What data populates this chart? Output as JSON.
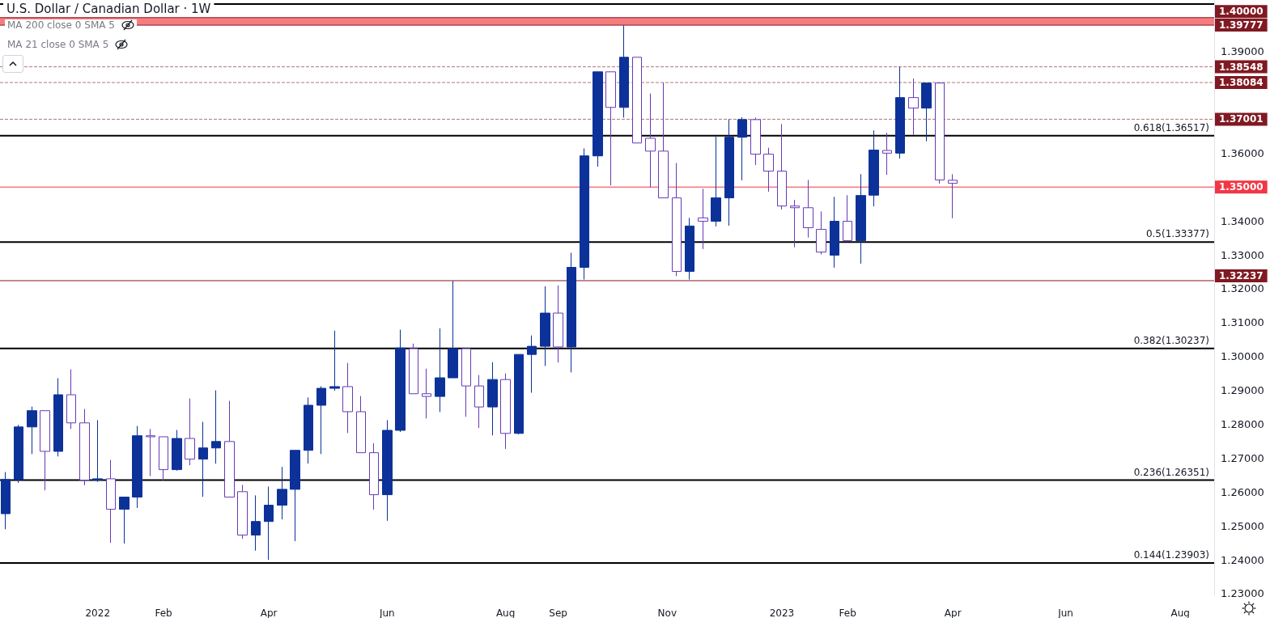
{
  "chart_data": {
    "type": "candlestick",
    "title": "U.S. Dollar / Canadian Dollar · 1W",
    "annotations": [
      "MA 200 close 0 SMA 5",
      "MA 21 close 0 SMA 5"
    ],
    "x": [
      "2021-11-14",
      "2021-11-21",
      "2021-11-28",
      "2021-12-05",
      "2021-12-12",
      "2021-12-19",
      "2021-12-26",
      "2022-01-02",
      "2022-01-09",
      "2022-01-16",
      "2022-01-23",
      "2022-01-30",
      "2022-02-06",
      "2022-02-13",
      "2022-02-20",
      "2022-02-27",
      "2022-03-06",
      "2022-03-13",
      "2022-03-20",
      "2022-03-27",
      "2022-04-03",
      "2022-04-10",
      "2022-04-17",
      "2022-04-24",
      "2022-05-01",
      "2022-05-08",
      "2022-05-15",
      "2022-05-22",
      "2022-05-29",
      "2022-06-05",
      "2022-06-12",
      "2022-06-19",
      "2022-06-26",
      "2022-07-03",
      "2022-07-10",
      "2022-07-17",
      "2022-07-24",
      "2022-07-31",
      "2022-08-07",
      "2022-08-14",
      "2022-08-21",
      "2022-08-28",
      "2022-09-04",
      "2022-09-11",
      "2022-09-18",
      "2022-09-25",
      "2022-10-02",
      "2022-10-09",
      "2022-10-16",
      "2022-10-23",
      "2022-10-30",
      "2022-11-06",
      "2022-11-13",
      "2022-11-20",
      "2022-11-27",
      "2022-12-04",
      "2022-12-11",
      "2022-12-18",
      "2022-12-25",
      "2023-01-01",
      "2023-01-08",
      "2023-01-15",
      "2023-01-22",
      "2023-01-29",
      "2023-02-05",
      "2023-02-12",
      "2023-02-19",
      "2023-02-26",
      "2023-03-05",
      "2023-03-12",
      "2023-03-19",
      "2023-03-26",
      "2023-04-02"
    ],
    "ohlc": [
      [
        1.2536,
        1.2659,
        1.249,
        1.2637
      ],
      [
        1.2637,
        1.2798,
        1.2627,
        1.2792
      ],
      [
        1.2792,
        1.2852,
        1.2712,
        1.284
      ],
      [
        1.284,
        1.284,
        1.2605,
        1.272
      ],
      [
        1.272,
        1.2936,
        1.2705,
        1.2887
      ],
      [
        1.2887,
        1.2962,
        1.2786,
        1.2804
      ],
      [
        1.2804,
        1.2845,
        1.262,
        1.2635
      ],
      [
        1.2635,
        1.2812,
        1.263,
        1.2639
      ],
      [
        1.2639,
        1.2695,
        1.245,
        1.2549
      ],
      [
        1.2549,
        1.2585,
        1.2448,
        1.2585
      ],
      [
        1.2585,
        1.2795,
        1.2553,
        1.2766
      ],
      [
        1.2766,
        1.2786,
        1.2647,
        1.2763
      ],
      [
        1.2763,
        1.2763,
        1.2634,
        1.2666
      ],
      [
        1.2666,
        1.2783,
        1.2663,
        1.2758
      ],
      [
        1.2758,
        1.2876,
        1.2679,
        1.2697
      ],
      [
        1.2697,
        1.2807,
        1.2586,
        1.273
      ],
      [
        1.273,
        1.29,
        1.2684,
        1.2749
      ],
      [
        1.2749,
        1.2869,
        1.2585,
        1.2585
      ],
      [
        1.2601,
        1.2621,
        1.2462,
        1.2473
      ],
      [
        1.2473,
        1.259,
        1.2427,
        1.2513
      ],
      [
        1.2513,
        1.2616,
        1.24,
        1.2561
      ],
      [
        1.2561,
        1.2674,
        1.2519,
        1.2608
      ],
      [
        1.2608,
        1.2723,
        1.2455,
        1.2723
      ],
      [
        1.2723,
        1.2879,
        1.2684,
        1.2856
      ],
      [
        1.2856,
        1.2912,
        1.2712,
        1.2906
      ],
      [
        1.2906,
        1.3076,
        1.2899,
        1.2911
      ],
      [
        1.2911,
        1.2981,
        1.2774,
        1.2837
      ],
      [
        1.2837,
        1.2883,
        1.2716,
        1.2716
      ],
      [
        1.2716,
        1.2744,
        1.2548,
        1.2592
      ],
      [
        1.2592,
        1.2812,
        1.2515,
        1.2782
      ],
      [
        1.2782,
        1.3079,
        1.2777,
        1.3025
      ],
      [
        1.3023,
        1.3038,
        1.289,
        1.289
      ],
      [
        1.289,
        1.2964,
        1.2817,
        1.2882
      ],
      [
        1.2882,
        1.3083,
        1.2836,
        1.2937
      ],
      [
        1.2937,
        1.3223,
        1.2937,
        1.3023
      ],
      [
        1.3023,
        1.3023,
        1.2822,
        1.2913
      ],
      [
        1.2913,
        1.2945,
        1.2789,
        1.2851
      ],
      [
        1.2851,
        1.2983,
        1.2767,
        1.2932
      ],
      [
        1.2932,
        1.295,
        1.2727,
        1.2773
      ],
      [
        1.2773,
        1.3006,
        1.277,
        1.3006
      ],
      [
        1.3006,
        1.3062,
        1.2893,
        1.303
      ],
      [
        1.303,
        1.3207,
        1.2972,
        1.3128
      ],
      [
        1.3128,
        1.321,
        1.2982,
        1.3028
      ],
      [
        1.3028,
        1.3306,
        1.2953,
        1.3263
      ],
      [
        1.3263,
        1.3614,
        1.3227,
        1.3592
      ],
      [
        1.3592,
        1.384,
        1.356,
        1.384
      ],
      [
        1.384,
        1.384,
        1.3505,
        1.3735
      ],
      [
        1.3735,
        1.3977,
        1.3705,
        1.3883
      ],
      [
        1.3883,
        1.3883,
        1.363,
        1.363
      ],
      [
        1.3644,
        1.3776,
        1.3499,
        1.3606
      ],
      [
        1.3606,
        1.3808,
        1.3468,
        1.3468
      ],
      [
        1.3468,
        1.3571,
        1.3237,
        1.3251
      ],
      [
        1.3251,
        1.3409,
        1.3227,
        1.3385
      ],
      [
        1.3409,
        1.3495,
        1.3317,
        1.3399
      ],
      [
        1.3399,
        1.3648,
        1.3384,
        1.3468
      ],
      [
        1.3468,
        1.37,
        1.3386,
        1.3647
      ],
      [
        1.3647,
        1.3706,
        1.352,
        1.3699
      ],
      [
        1.3699,
        1.3705,
        1.3565,
        1.3597
      ],
      [
        1.3597,
        1.3616,
        1.3486,
        1.3547
      ],
      [
        1.3547,
        1.3686,
        1.3434,
        1.3444
      ],
      [
        1.3444,
        1.3462,
        1.3322,
        1.3439
      ],
      [
        1.3439,
        1.3521,
        1.3351,
        1.338
      ],
      [
        1.3375,
        1.3428,
        1.3301,
        1.3308
      ],
      [
        1.3299,
        1.3471,
        1.3262,
        1.3399
      ],
      [
        1.3399,
        1.3476,
        1.3339,
        1.3342
      ],
      [
        1.3342,
        1.3538,
        1.3274,
        1.3475
      ],
      [
        1.3476,
        1.3667,
        1.3443,
        1.3609
      ],
      [
        1.3608,
        1.366,
        1.3536,
        1.36
      ],
      [
        1.36,
        1.3855,
        1.3584,
        1.3764
      ],
      [
        1.3764,
        1.382,
        1.3654,
        1.3733
      ],
      [
        1.3733,
        1.3808,
        1.3635,
        1.3807
      ],
      [
        1.3807,
        1.3808,
        1.351,
        1.3521
      ],
      [
        1.352,
        1.3538,
        1.3408,
        1.3511
      ]
    ],
    "colors": [
      "#0c3299",
      "#0c3299",
      "#0c3299",
      "#673ab7",
      "#0c3299",
      "#673ab7",
      "#673ab7",
      "#0c3299",
      "#673ab7",
      "#0c3299",
      "#0c3299",
      "#673ab7",
      "#673ab7",
      "#0c3299",
      "#673ab7",
      "#0c3299",
      "#0c3299",
      "#673ab7",
      "#673ab7",
      "#0c3299",
      "#0c3299",
      "#0c3299",
      "#0c3299",
      "#0c3299",
      "#0c3299",
      "#0c3299",
      "#673ab7",
      "#673ab7",
      "#673ab7",
      "#0c3299",
      "#0c3299",
      "#673ab7",
      "#673ab7",
      "#0c3299",
      "#0c3299",
      "#673ab7",
      "#673ab7",
      "#0c3299",
      "#673ab7",
      "#0c3299",
      "#0c3299",
      "#0c3299",
      "#673ab7",
      "#0c3299",
      "#0c3299",
      "#0c3299",
      "#673ab7",
      "#0c3299",
      "#673ab7",
      "#673ab7",
      "#673ab7",
      "#673ab7",
      "#0c3299",
      "#673ab7",
      "#0c3299",
      "#0c3299",
      "#0c3299",
      "#673ab7",
      "#673ab7",
      "#673ab7",
      "#673ab7",
      "#673ab7",
      "#673ab7",
      "#0c3299",
      "#673ab7",
      "#0c3299",
      "#0c3299",
      "#673ab7",
      "#0c3299",
      "#673ab7",
      "#0c3299",
      "#673ab7",
      "#673ab7"
    ],
    "xlim": [
      "2021-11-11",
      "2023-08-19"
    ],
    "xticks": [
      {
        "value": "2022-01-02",
        "label": "2022"
      },
      {
        "value": "2022-02-06",
        "label": "Feb"
      },
      {
        "value": "2022-04-03",
        "label": "Apr"
      },
      {
        "value": "2022-06-05",
        "label": "Jun"
      },
      {
        "value": "2022-08-07",
        "label": "Aug"
      },
      {
        "value": "2022-09-04",
        "label": "Sep"
      },
      {
        "value": "2022-11-01",
        "label": "Nov"
      },
      {
        "value": "2023-01-01",
        "label": "2023"
      },
      {
        "value": "2023-02-05",
        "label": "Feb"
      },
      {
        "value": "2023-04-02",
        "label": "Apr"
      },
      {
        "value": "2023-06-01",
        "label": "Jun"
      },
      {
        "value": "2023-08-01",
        "label": "Aug"
      }
    ],
    "ylim": [
      1.2295,
      1.4052
    ],
    "yticks": [
      {
        "value": 1.23,
        "label": "1.23000"
      },
      {
        "value": 1.24,
        "label": "1.24000"
      },
      {
        "value": 1.25,
        "label": "1.25000"
      },
      {
        "value": 1.26,
        "label": "1.26000"
      },
      {
        "value": 1.27,
        "label": "1.27000"
      },
      {
        "value": 1.28,
        "label": "1.28000"
      },
      {
        "value": 1.29,
        "label": "1.29000"
      },
      {
        "value": 1.3,
        "label": "1.30000"
      },
      {
        "value": 1.31,
        "label": "1.31000"
      },
      {
        "value": 1.32,
        "label": "1.32000"
      },
      {
        "value": 1.33,
        "label": "1.33000"
      },
      {
        "value": 1.34,
        "label": "1.34000"
      },
      {
        "value": 1.36,
        "label": "1.36000"
      },
      {
        "value": 1.39,
        "label": "1.39000"
      }
    ],
    "ref_lines": [
      {
        "axis": "y",
        "value": 1.404,
        "color": "#000000"
      },
      {
        "axis": "y",
        "value": 1.4,
        "label": "1.40000",
        "color": "#801922"
      },
      {
        "axis": "y",
        "value": 1.39777,
        "label": "1.39777",
        "color": "#801922"
      },
      {
        "axis": "y",
        "value": 1.38548,
        "label": "1.38548",
        "color": "#801922",
        "line_style": "dashed"
      },
      {
        "axis": "y",
        "value": 1.38084,
        "label": "1.38084",
        "color": "#801922",
        "line_style": "dashed"
      },
      {
        "axis": "y",
        "value": 1.37001,
        "label": "1.37001",
        "color": "#801922",
        "line_style": "dashed"
      },
      {
        "axis": "y",
        "value": 1.36517,
        "label": "0.618(1.36517)",
        "color": "#000000"
      },
      {
        "axis": "y",
        "value": 1.35,
        "label": "1.35000",
        "color": "#f23645"
      },
      {
        "axis": "y",
        "value": 1.33377,
        "label": "0.5(1.33377)",
        "color": "#000000"
      },
      {
        "axis": "y",
        "value": 1.32237,
        "label": "1.32237",
        "color": "#801922"
      },
      {
        "axis": "y",
        "value": 1.30237,
        "label": "0.382(1.30237)",
        "color": "#000000"
      },
      {
        "axis": "y",
        "value": 1.26351,
        "label": "0.236(1.26351)",
        "color": "#000000"
      },
      {
        "axis": "y",
        "value": 1.23903,
        "label": "0.144(1.23903)",
        "color": "#000000"
      }
    ],
    "bands": [
      {
        "axis": "y",
        "from": 1.39777,
        "to": 1.4,
        "color": "#f77c80"
      }
    ]
  }
}
